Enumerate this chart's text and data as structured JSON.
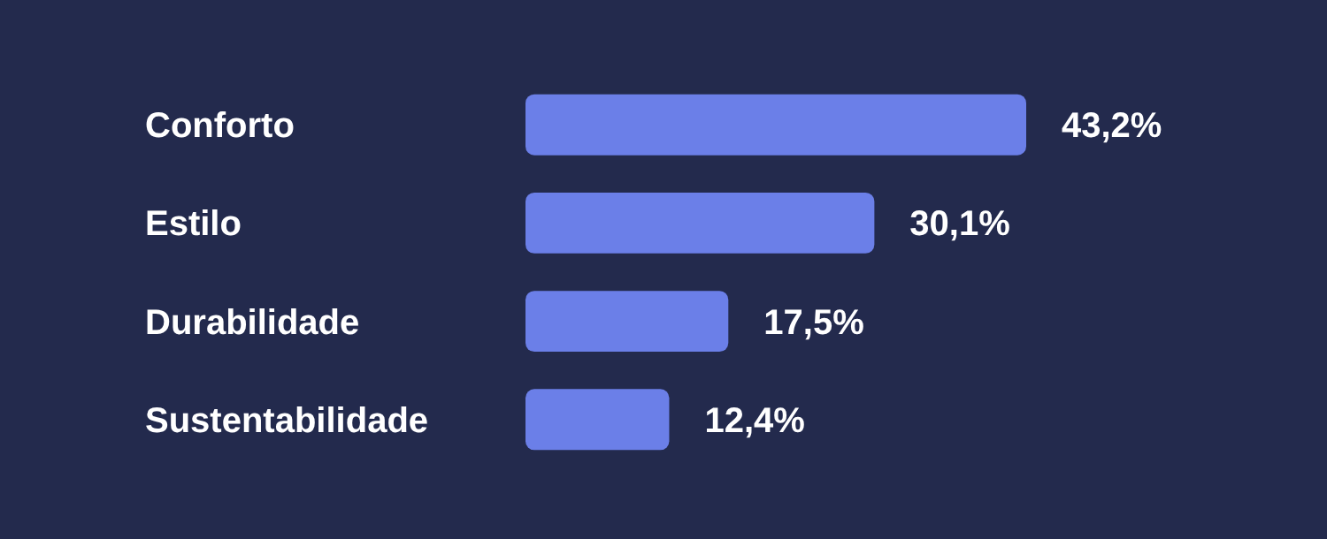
{
  "chart_data": {
    "type": "bar",
    "orientation": "horizontal",
    "categories": [
      "Conforto",
      "Estilo",
      "Durabilidade",
      "Sustentabilidade"
    ],
    "values": [
      43.2,
      30.1,
      17.5,
      12.4
    ],
    "value_labels": [
      "43,2%",
      "30,1%",
      "17,5%",
      "12,4%"
    ],
    "color": "#6b7fe8"
  }
}
